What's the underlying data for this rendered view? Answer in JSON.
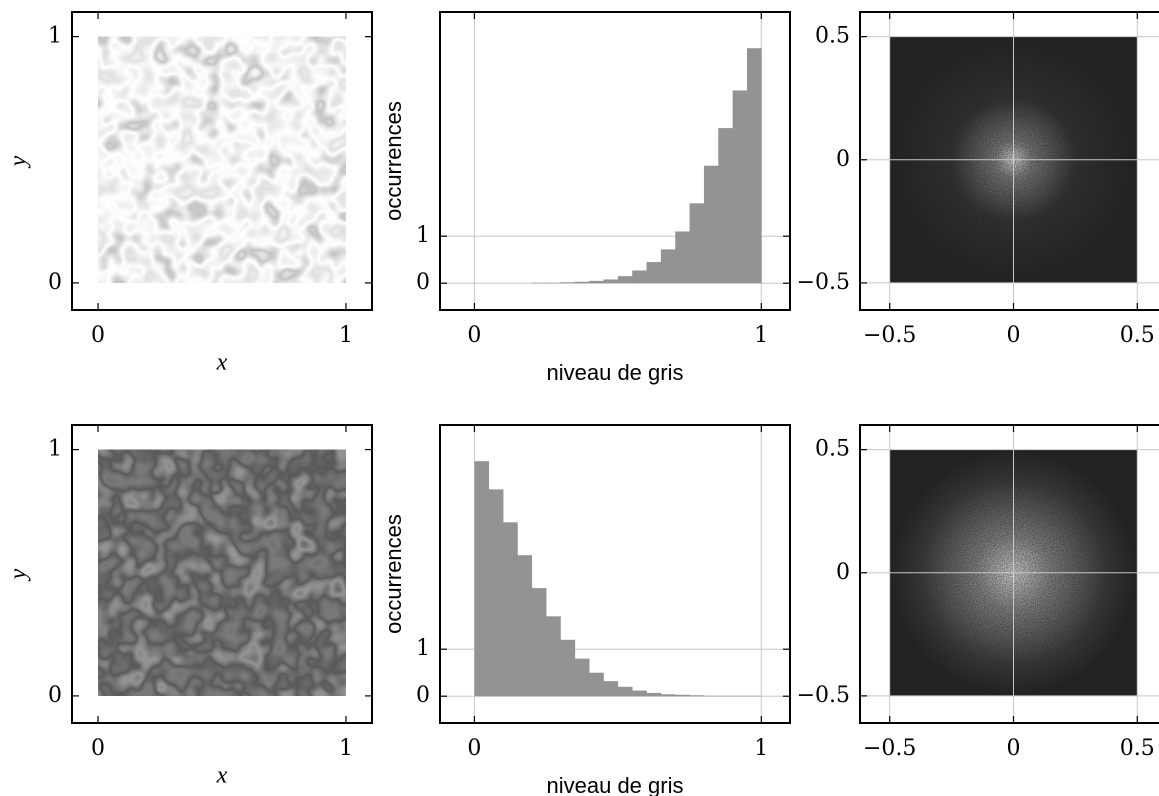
{
  "chart_data": [
    {
      "type": "image",
      "xlabel": "x",
      "ylabel": "y",
      "extent": [
        0,
        1,
        0,
        1
      ],
      "xlim": [
        -0.105,
        1.105
      ],
      "ylim": [
        -0.11,
        1.1
      ],
      "xticks": [
        0,
        1
      ],
      "yticks": [
        0,
        1
      ],
      "grid": false
    },
    {
      "type": "histogram",
      "xlabel": "niveau de gris",
      "ylabel": "occurrences",
      "color": "#939393",
      "bins": [
        0,
        0.05,
        0.1,
        0.15,
        0.2,
        0.25,
        0.3,
        0.35,
        0.4,
        0.45,
        0.5,
        0.55,
        0.6,
        0.65,
        0.7,
        0.75,
        0.8,
        0.85,
        0.9,
        0.95,
        1
      ],
      "values": [
        0,
        0,
        0,
        0,
        0.01,
        0.01,
        0.02,
        0.03,
        0.05,
        0.08,
        0.15,
        0.27,
        0.45,
        0.72,
        1.1,
        1.7,
        2.5,
        3.3,
        4.1,
        5.0
      ],
      "xlim": [
        -0.12,
        1.1
      ],
      "ylim": [
        -0.57,
        5.77
      ],
      "xticks": [
        0,
        1
      ],
      "yticks": [
        0,
        1
      ],
      "grid": true
    },
    {
      "type": "image",
      "extent": [
        -0.5,
        0.5,
        -0.5,
        0.5
      ],
      "xlim": [
        -0.62,
        0.62
      ],
      "ylim": [
        -0.61,
        0.6
      ],
      "xticks": [
        {
          "value": -0.5,
          "label": "−0.5"
        },
        0,
        0.5
      ],
      "yticks": [
        {
          "value": -0.5,
          "label": "−0.5"
        },
        0,
        0.5
      ],
      "grid": true
    },
    {
      "type": "image",
      "xlabel": "x",
      "ylabel": "y",
      "extent": [
        0,
        1,
        0,
        1
      ],
      "xlim": [
        -0.105,
        1.105
      ],
      "ylim": [
        -0.11,
        1.1
      ],
      "xticks": [
        0,
        1
      ],
      "yticks": [
        0,
        1
      ],
      "grid": false
    },
    {
      "type": "histogram",
      "xlabel": "niveau de gris",
      "ylabel": "occurrences",
      "color": "#939393",
      "bins": [
        0,
        0.05,
        0.1,
        0.15,
        0.2,
        0.25,
        0.3,
        0.35,
        0.4,
        0.45,
        0.5,
        0.55,
        0.6,
        0.65,
        0.7,
        0.75,
        0.8,
        0.85,
        0.9,
        0.95,
        1
      ],
      "values": [
        5.0,
        4.4,
        3.7,
        3.0,
        2.3,
        1.7,
        1.2,
        0.8,
        0.5,
        0.32,
        0.2,
        0.12,
        0.07,
        0.04,
        0.03,
        0.02,
        0.01,
        0.01,
        0.01,
        0.01
      ],
      "xlim": [
        -0.12,
        1.1
      ],
      "ylim": [
        -0.57,
        5.77
      ],
      "xticks": [
        0,
        1
      ],
      "yticks": [
        0,
        1
      ],
      "grid": true
    },
    {
      "type": "image",
      "extent": [
        -0.5,
        0.5,
        -0.5,
        0.5
      ],
      "xlim": [
        -0.62,
        0.62
      ],
      "ylim": [
        -0.61,
        0.6
      ],
      "xticks": [
        {
          "value": -0.5,
          "label": "−0.5"
        },
        0,
        0.5
      ],
      "yticks": [
        {
          "value": -0.5,
          "label": "−0.5"
        },
        0,
        0.5
      ],
      "grid": true
    }
  ]
}
